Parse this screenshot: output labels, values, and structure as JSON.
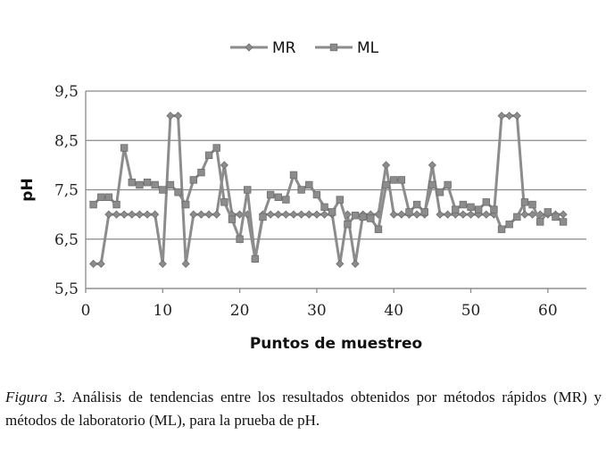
{
  "chart_data": {
    "type": "line",
    "xlabel": "Puntos de muestreo",
    "ylabel": "pH",
    "xlim": [
      0,
      65
    ],
    "ylim": [
      5.5,
      9.5
    ],
    "x_ticks": [
      "0",
      "10",
      "20",
      "30",
      "40",
      "50",
      "60"
    ],
    "y_ticks": [
      "5,5",
      "6,5",
      "7,5",
      "8,5",
      "9,5"
    ],
    "grid": "horizontal",
    "legend_position": "top-center",
    "x": [
      1,
      2,
      3,
      4,
      5,
      6,
      7,
      8,
      9,
      10,
      11,
      12,
      13,
      14,
      15,
      16,
      17,
      18,
      19,
      20,
      21,
      22,
      23,
      24,
      25,
      26,
      27,
      28,
      29,
      30,
      31,
      32,
      33,
      34,
      35,
      36,
      37,
      38,
      39,
      40,
      41,
      42,
      43,
      44,
      45,
      46,
      47,
      48,
      49,
      50,
      51,
      52,
      53,
      54,
      55,
      56,
      57,
      58,
      59,
      60,
      61,
      62
    ],
    "series": [
      {
        "name": "MR",
        "marker": "diamond",
        "color": "#8c8c8c",
        "values": [
          6,
          6,
          7,
          7,
          7,
          7,
          7,
          7,
          7,
          6,
          9,
          9,
          6,
          7,
          7,
          7,
          7,
          8,
          7,
          7,
          7,
          6.1,
          7,
          7,
          7,
          7,
          7,
          7,
          7,
          7,
          7,
          7,
          6,
          7,
          6,
          7,
          7,
          7,
          8,
          7,
          7,
          7,
          7,
          7,
          8,
          7,
          7,
          7,
          7,
          7,
          7,
          7,
          7,
          9,
          9,
          9,
          7,
          7,
          7,
          7,
          7,
          7
        ]
      },
      {
        "name": "ML",
        "marker": "square",
        "color": "#8c8c8c",
        "values": [
          7.2,
          7.35,
          7.35,
          7.2,
          8.35,
          7.65,
          7.6,
          7.65,
          7.6,
          7.5,
          7.6,
          7.45,
          7.2,
          7.7,
          7.85,
          8.2,
          8.35,
          7.25,
          6.9,
          6.5,
          7.5,
          6.1,
          6.95,
          7.4,
          7.35,
          7.3,
          7.8,
          7.5,
          7.6,
          7.4,
          7.15,
          7.05,
          7.3,
          6.8,
          6.98,
          6.95,
          6.92,
          6.7,
          7.6,
          7.7,
          7.7,
          7.05,
          7.2,
          7.05,
          7.6,
          7.45,
          7.6,
          7.1,
          7.2,
          7.15,
          7.1,
          7.25,
          7.1,
          6.7,
          6.8,
          6.95,
          7.25,
          7.2,
          6.85,
          7.05,
          6.95,
          6.85
        ]
      }
    ]
  },
  "caption": {
    "figure_label": "Figura 3.",
    "text": " Análisis de tendencias entre los resultados obtenidos por métodos rápidos (MR) y métodos de laboratorio (ML), para la prueba de pH."
  }
}
